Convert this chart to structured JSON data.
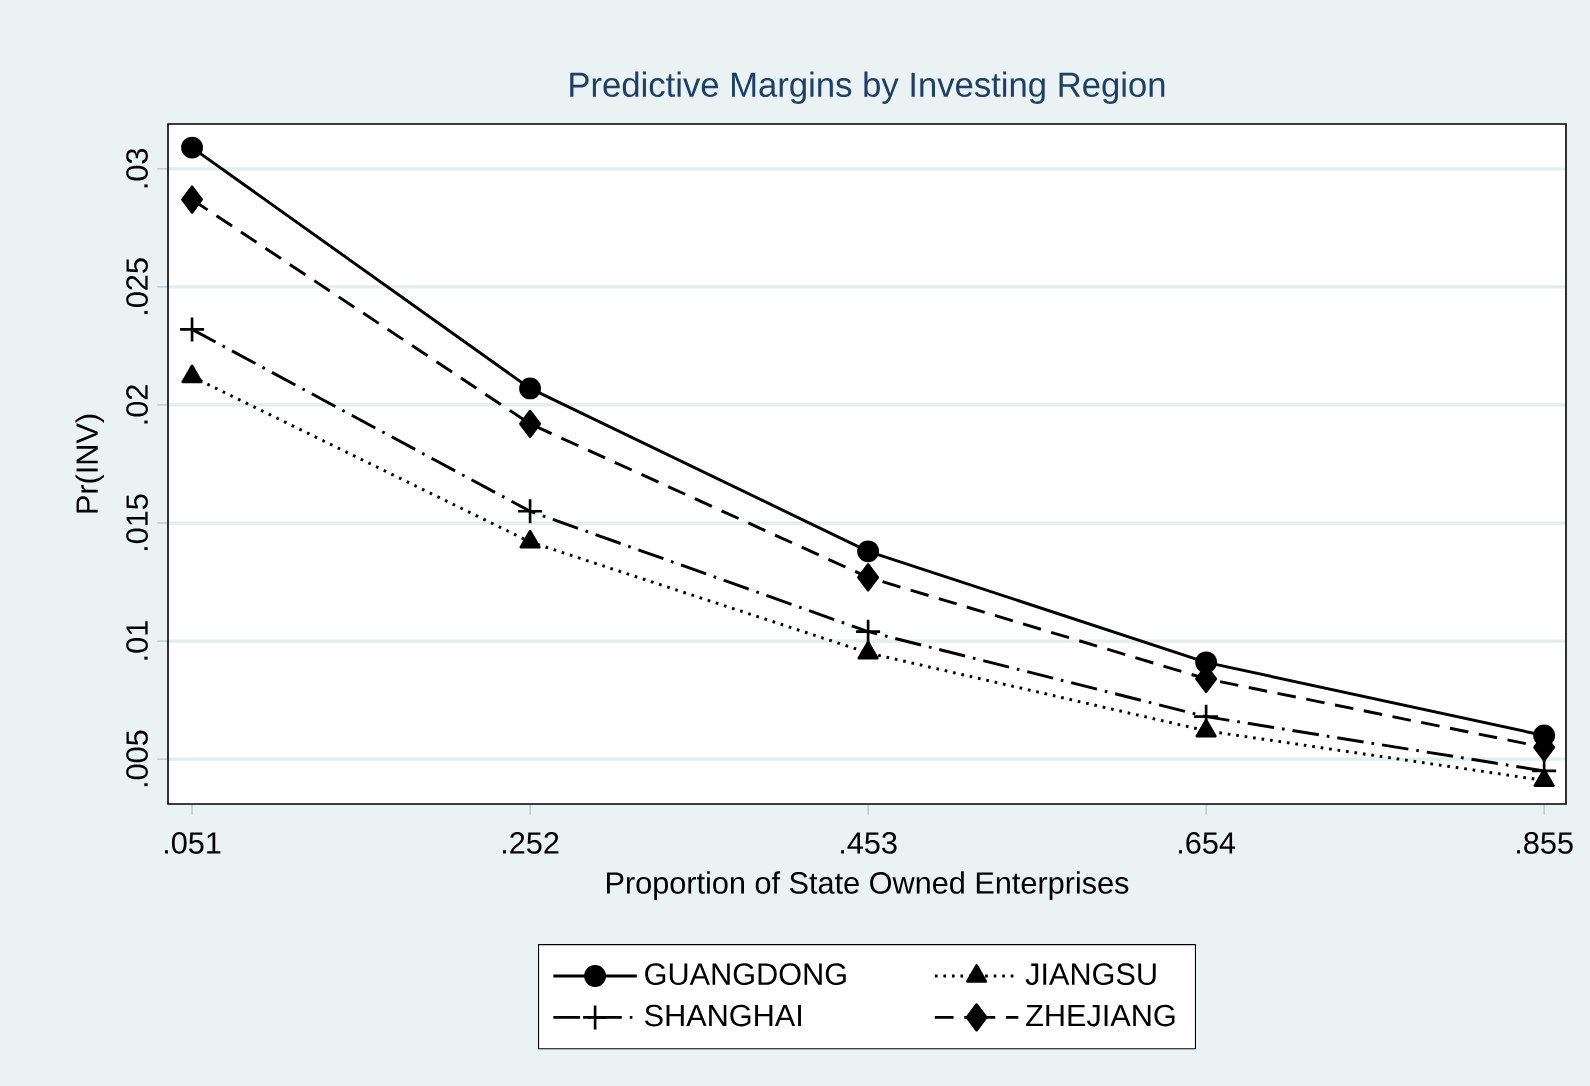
{
  "chart_data": {
    "type": "line",
    "title": "Predictive Margins by Investing Region",
    "xlabel": "Proportion of State Owned Enterprises",
    "ylabel": "Pr(INV)",
    "x": [
      0.051,
      0.252,
      0.453,
      0.654,
      0.855
    ],
    "series": [
      {
        "name": "GUANGDONG",
        "color": "#000000",
        "marker": "circle",
        "line_style": "solid",
        "values": [
          0.0309,
          0.0207,
          0.0138,
          0.0091,
          0.006
        ]
      },
      {
        "name": "JIANGSU",
        "color": "#000000",
        "marker": "triangle",
        "line_style": "dotted",
        "values": [
          0.0212,
          0.0142,
          0.0095,
          0.0062,
          0.0041
        ]
      },
      {
        "name": "SHANGHAI",
        "color": "#000000",
        "marker": "cross",
        "line_style": "dashdot",
        "values": [
          0.0232,
          0.0155,
          0.0104,
          0.0068,
          0.0045
        ]
      },
      {
        "name": "ZHEJIANG",
        "color": "#000000",
        "marker": "diamond",
        "line_style": "dashed",
        "values": [
          0.0287,
          0.0192,
          0.0127,
          0.0084,
          0.0055
        ]
      }
    ],
    "xlim": [
      0.0367,
      0.868
    ],
    "ylim": [
      0.0031,
      0.0319
    ],
    "xticks": [
      {
        "value": 0.051,
        "label": ".051"
      },
      {
        "value": 0.252,
        "label": ".252"
      },
      {
        "value": 0.453,
        "label": ".453"
      },
      {
        "value": 0.654,
        "label": ".654"
      },
      {
        "value": 0.855,
        "label": ".855"
      }
    ],
    "yticks": [
      {
        "value": 0.005,
        "label": ".005"
      },
      {
        "value": 0.01,
        "label": ".01"
      },
      {
        "value": 0.015,
        "label": ".015"
      },
      {
        "value": 0.02,
        "label": ".02"
      },
      {
        "value": 0.025,
        "label": ".025"
      },
      {
        "value": 0.03,
        "label": ".03"
      }
    ],
    "grid": "y",
    "legend": "bottom"
  }
}
